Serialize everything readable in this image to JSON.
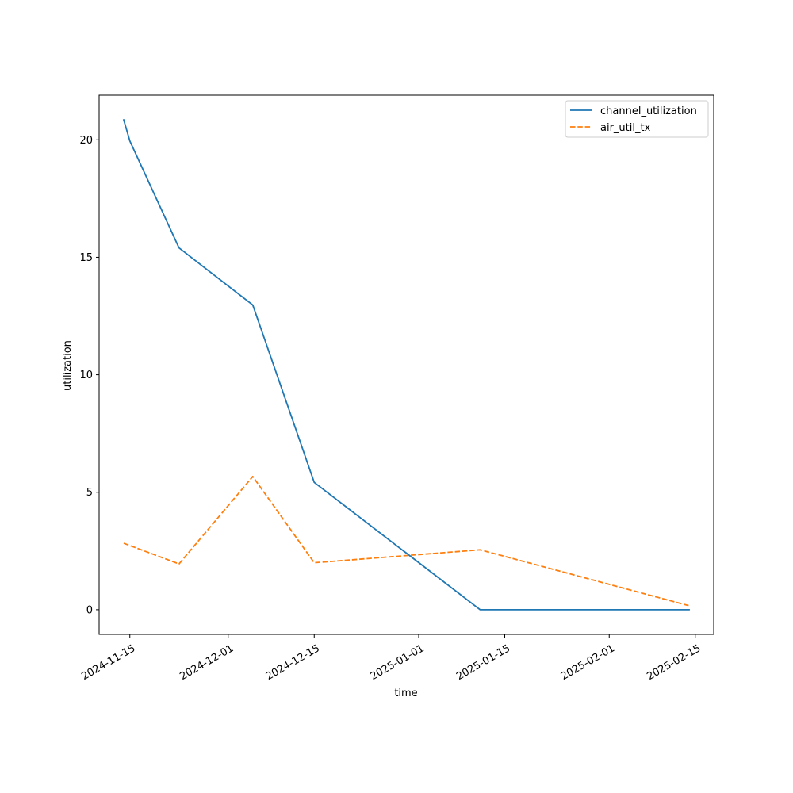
{
  "chart_data": {
    "type": "line",
    "title": "",
    "xlabel": "time",
    "ylabel": "utilization",
    "x_ticks": [
      "2024-11-15",
      "2024-12-01",
      "2024-12-15",
      "2025-01-01",
      "2025-01-15",
      "2025-02-01",
      "2025-02-15"
    ],
    "y_ticks": [
      0,
      5,
      10,
      15,
      20
    ],
    "xlim": [
      "2024-11-10",
      "2025-02-18"
    ],
    "ylim": [
      -1.05,
      21.9
    ],
    "grid": false,
    "legend_position": "top-right",
    "series": [
      {
        "name": "channel_utilization",
        "color": "#1f77b4",
        "style": "solid",
        "points": [
          {
            "x": "2024-11-14",
            "y": 20.85
          },
          {
            "x": "2024-11-15",
            "y": 19.95
          },
          {
            "x": "2024-11-23",
            "y": 15.4
          },
          {
            "x": "2024-12-05",
            "y": 12.97
          },
          {
            "x": "2024-12-15",
            "y": 5.42
          },
          {
            "x": "2025-01-11",
            "y": 0.0
          },
          {
            "x": "2025-02-14",
            "y": 0.0
          }
        ]
      },
      {
        "name": "air_util_tx",
        "color": "#ff7f0e",
        "style": "dashed",
        "points": [
          {
            "x": "2024-11-14",
            "y": 2.83
          },
          {
            "x": "2024-11-23",
            "y": 1.95
          },
          {
            "x": "2024-12-05",
            "y": 5.67
          },
          {
            "x": "2024-12-15",
            "y": 2.0
          },
          {
            "x": "2025-01-11",
            "y": 2.55
          },
          {
            "x": "2025-02-14",
            "y": 0.17
          }
        ]
      }
    ]
  }
}
